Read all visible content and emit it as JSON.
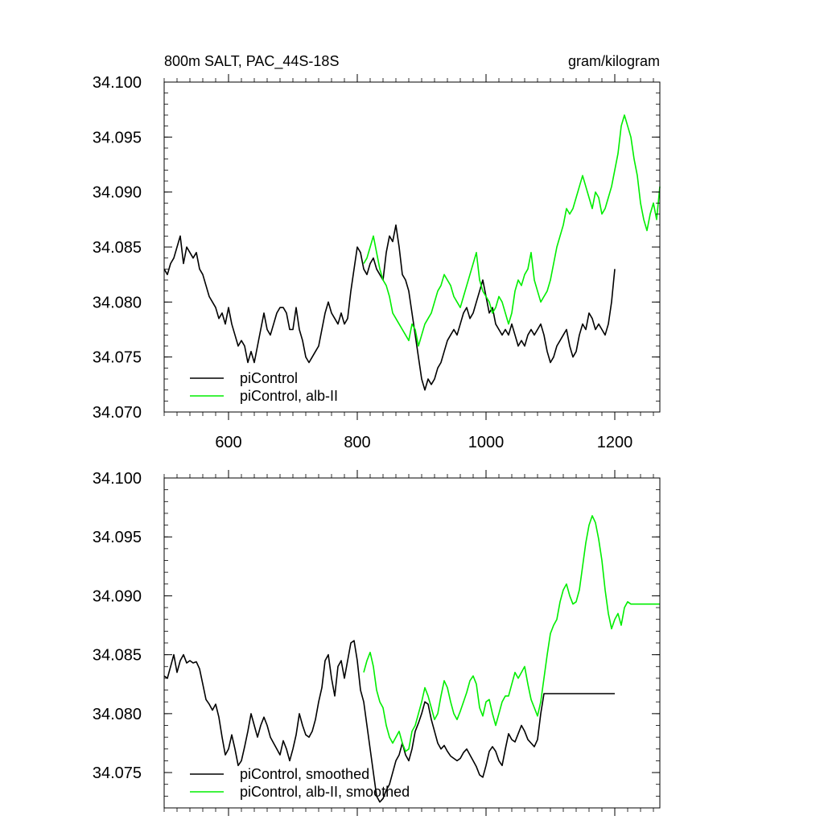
{
  "figure": {
    "title_left": "800m SALT, PAC_44S-18S",
    "title_right": "gram/kilogram"
  },
  "colors": {
    "piControl": "#000000",
    "alb_II": "#00ee00",
    "axis": "#000000"
  },
  "chart_data": [
    {
      "type": "line",
      "title": "800m SALT, PAC_44S-18S",
      "units": "gram/kilogram",
      "xlim": [
        500,
        1270
      ],
      "ylim": [
        34.07,
        34.1
      ],
      "xticks": [
        600,
        800,
        1000,
        1200
      ],
      "xtick_labels": [
        "600",
        "800",
        "1000",
        "1200"
      ],
      "yticks": [
        34.07,
        34.075,
        34.08,
        34.085,
        34.09,
        34.095,
        34.1
      ],
      "ytick_labels": [
        "34.070",
        "34.075",
        "34.080",
        "34.085",
        "34.090",
        "34.095",
        "34.100"
      ],
      "grid": false,
      "legend_position": "bottom-left",
      "series": [
        {
          "name": "piControl",
          "color": "#000000",
          "x": [
            500,
            505,
            510,
            515,
            520,
            525,
            530,
            535,
            540,
            545,
            550,
            555,
            560,
            565,
            570,
            575,
            580,
            585,
            590,
            595,
            600,
            605,
            610,
            615,
            620,
            625,
            630,
            635,
            640,
            645,
            650,
            655,
            660,
            665,
            670,
            675,
            680,
            685,
            690,
            695,
            700,
            705,
            710,
            715,
            720,
            725,
            730,
            735,
            740,
            745,
            750,
            755,
            760,
            765,
            770,
            775,
            780,
            785,
            790,
            795,
            800,
            805,
            810,
            815,
            820,
            825,
            830,
            835,
            840,
            845,
            850,
            855,
            860,
            865,
            870,
            875,
            880,
            885,
            890,
            895,
            900,
            905,
            910,
            915,
            920,
            925,
            930,
            935,
            940,
            945,
            950,
            955,
            960,
            965,
            970,
            975,
            980,
            985,
            990,
            995,
            1000,
            1005,
            1010,
            1015,
            1020,
            1025,
            1030,
            1035,
            1040,
            1045,
            1050,
            1055,
            1060,
            1065,
            1070,
            1075,
            1080,
            1085,
            1090,
            1095,
            1100,
            1105,
            1110,
            1115,
            1120,
            1125,
            1130,
            1135,
            1140,
            1145,
            1150,
            1155,
            1160,
            1165,
            1170,
            1175,
            1180,
            1185,
            1190,
            1195,
            1200
          ],
          "values": [
            34.083,
            34.0825,
            34.0835,
            34.084,
            34.085,
            34.086,
            34.0835,
            34.085,
            34.0845,
            34.084,
            34.0845,
            34.083,
            34.0825,
            34.0815,
            34.0805,
            34.08,
            34.0795,
            34.0785,
            34.079,
            34.078,
            34.0795,
            34.078,
            34.077,
            34.076,
            34.0765,
            34.076,
            34.0745,
            34.0755,
            34.0745,
            34.076,
            34.0775,
            34.079,
            34.0775,
            34.077,
            34.078,
            34.079,
            34.0795,
            34.0795,
            34.079,
            34.0775,
            34.0775,
            34.0795,
            34.0775,
            34.0765,
            34.075,
            34.0745,
            34.075,
            34.0755,
            34.076,
            34.0775,
            34.079,
            34.08,
            34.079,
            34.0785,
            34.078,
            34.079,
            34.078,
            34.0785,
            34.081,
            34.083,
            34.085,
            34.0845,
            34.083,
            34.0825,
            34.0835,
            34.084,
            34.083,
            34.0825,
            34.082,
            34.0845,
            34.086,
            34.0855,
            34.087,
            34.085,
            34.0825,
            34.082,
            34.081,
            34.079,
            34.077,
            34.075,
            34.073,
            34.072,
            34.073,
            34.0725,
            34.073,
            34.074,
            34.0745,
            34.0755,
            34.0765,
            34.077,
            34.0775,
            34.077,
            34.078,
            34.079,
            34.0795,
            34.0785,
            34.079,
            34.08,
            34.081,
            34.082,
            34.0805,
            34.079,
            34.0795,
            34.078,
            34.0775,
            34.077,
            34.0775,
            34.077,
            34.078,
            34.077,
            34.076,
            34.0765,
            34.076,
            34.077,
            34.0775,
            34.077,
            34.0775,
            34.078,
            34.077,
            34.0755,
            34.0745,
            34.075,
            34.076,
            34.0765,
            34.077,
            34.0775,
            34.076,
            34.075,
            34.0755,
            34.077,
            34.078,
            34.0775,
            34.079,
            34.0785,
            34.0775,
            34.078,
            34.0775,
            34.077,
            34.078,
            34.08,
            34.083
          ]
        },
        {
          "name": "piControl, alb-II",
          "color": "#00ee00",
          "x": [
            810,
            815,
            820,
            825,
            830,
            835,
            840,
            845,
            850,
            855,
            860,
            865,
            870,
            875,
            880,
            885,
            890,
            895,
            900,
            905,
            910,
            915,
            920,
            925,
            930,
            935,
            940,
            945,
            950,
            955,
            960,
            965,
            970,
            975,
            980,
            985,
            990,
            995,
            1000,
            1005,
            1010,
            1015,
            1020,
            1025,
            1030,
            1035,
            1040,
            1045,
            1050,
            1055,
            1060,
            1065,
            1070,
            1075,
            1080,
            1085,
            1090,
            1095,
            1100,
            1105,
            1110,
            1115,
            1120,
            1125,
            1130,
            1135,
            1140,
            1145,
            1150,
            1155,
            1160,
            1165,
            1170,
            1175,
            1180,
            1185,
            1190,
            1195,
            1200,
            1205,
            1210,
            1215,
            1220,
            1225,
            1230,
            1235,
            1240,
            1245,
            1250,
            1255,
            1260,
            1265,
            1270
          ],
          "values": [
            34.0835,
            34.084,
            34.085,
            34.086,
            34.0845,
            34.083,
            34.082,
            34.0815,
            34.0805,
            34.079,
            34.0785,
            34.078,
            34.0775,
            34.077,
            34.0765,
            34.078,
            34.0775,
            34.076,
            34.077,
            34.078,
            34.0785,
            34.079,
            34.08,
            34.081,
            34.0815,
            34.0825,
            34.082,
            34.0815,
            34.0805,
            34.08,
            34.0795,
            34.0805,
            34.0815,
            34.0825,
            34.0835,
            34.0845,
            34.082,
            34.081,
            34.0805,
            34.08,
            34.079,
            34.0795,
            34.0805,
            34.08,
            34.079,
            34.078,
            34.079,
            34.081,
            34.082,
            34.0815,
            34.0825,
            34.083,
            34.0845,
            34.082,
            34.081,
            34.08,
            34.0805,
            34.081,
            34.082,
            34.0835,
            34.085,
            34.086,
            34.087,
            34.0885,
            34.088,
            34.0885,
            34.0895,
            34.0905,
            34.0915,
            34.0905,
            34.0895,
            34.0885,
            34.09,
            34.0895,
            34.088,
            34.0885,
            34.0895,
            34.0905,
            34.092,
            34.0935,
            34.096,
            34.097,
            34.096,
            34.095,
            34.093,
            34.0915,
            34.089,
            34.0875,
            34.0865,
            34.088,
            34.089,
            34.0875,
            34.0905
          ]
        }
      ]
    },
    {
      "type": "line",
      "xlim": [
        500,
        1270
      ],
      "ylim": [
        34.072,
        34.1
      ],
      "xticks": [
        600,
        800,
        1000,
        1200
      ],
      "yticks": [
        34.075,
        34.08,
        34.085,
        34.09,
        34.095,
        34.1
      ],
      "ytick_labels": [
        "34.075",
        "34.080",
        "34.085",
        "34.090",
        "34.095",
        "34.100"
      ],
      "grid": false,
      "legend_position": "bottom-left",
      "series": [
        {
          "name": "piControl, smoothed",
          "color": "#000000",
          "x": [
            500,
            505,
            510,
            515,
            520,
            525,
            530,
            535,
            540,
            545,
            550,
            555,
            560,
            565,
            570,
            575,
            580,
            585,
            590,
            595,
            600,
            605,
            610,
            615,
            620,
            625,
            630,
            635,
            640,
            645,
            650,
            655,
            660,
            665,
            670,
            675,
            680,
            685,
            690,
            695,
            700,
            705,
            710,
            715,
            720,
            725,
            730,
            735,
            740,
            745,
            750,
            755,
            760,
            765,
            770,
            775,
            780,
            785,
            790,
            795,
            800,
            805,
            810,
            815,
            820,
            825,
            830,
            835,
            840,
            845,
            850,
            855,
            860,
            865,
            870,
            875,
            880,
            885,
            890,
            895,
            900,
            905,
            910,
            915,
            920,
            925,
            930,
            935,
            940,
            945,
            950,
            955,
            960,
            965,
            970,
            975,
            980,
            985,
            990,
            995,
            1000,
            1005,
            1010,
            1015,
            1020,
            1025,
            1030,
            1035,
            1040,
            1045,
            1050,
            1055,
            1060,
            1065,
            1070,
            1075,
            1080,
            1085,
            1090,
            1095,
            1100,
            1105,
            1110,
            1115,
            1120,
            1125,
            1130,
            1135,
            1140,
            1145,
            1150,
            1155,
            1160,
            1165,
            1170,
            1175,
            1180,
            1185,
            1190,
            1195,
            1200
          ],
          "values": [
            34.0832,
            34.083,
            34.084,
            34.085,
            34.0835,
            34.0845,
            34.085,
            34.0843,
            34.0845,
            34.0843,
            34.0844,
            34.0838,
            34.0825,
            34.0812,
            34.0808,
            34.0803,
            34.0808,
            34.0797,
            34.078,
            34.0765,
            34.077,
            34.0782,
            34.077,
            34.0756,
            34.076,
            34.0772,
            34.0785,
            34.08,
            34.079,
            34.078,
            34.079,
            34.0797,
            34.079,
            34.078,
            34.0775,
            34.077,
            34.0765,
            34.0777,
            34.077,
            34.076,
            34.077,
            34.0782,
            34.08,
            34.079,
            34.0782,
            34.078,
            34.0785,
            34.0795,
            34.081,
            34.0822,
            34.0845,
            34.085,
            34.083,
            34.0815,
            34.084,
            34.0845,
            34.083,
            34.0845,
            34.086,
            34.0862,
            34.0845,
            34.082,
            34.081,
            34.079,
            34.077,
            34.075,
            34.073,
            34.0725,
            34.0728,
            34.0735,
            34.074,
            34.075,
            34.076,
            34.0765,
            34.0775,
            34.0765,
            34.076,
            34.077,
            34.0785,
            34.0792,
            34.08,
            34.081,
            34.0808,
            34.0795,
            34.0785,
            34.0775,
            34.077,
            34.0773,
            34.0768,
            34.0764,
            34.0762,
            34.076,
            34.0762,
            34.0767,
            34.077,
            34.0765,
            34.076,
            34.0755,
            34.0748,
            34.0746,
            34.0756,
            34.0768,
            34.0772,
            34.0768,
            34.076,
            34.0756,
            34.077,
            34.0783,
            34.0778,
            34.0776,
            34.0783,
            34.079,
            34.0785,
            34.0778,
            34.0775,
            34.0772,
            34.0778,
            34.08,
            34.0817,
            34.0817,
            34.0817,
            34.0817,
            34.0817,
            34.0817,
            34.0817,
            34.0817,
            34.0817,
            34.0817,
            34.0817,
            34.0817,
            34.0817,
            34.0817,
            34.0817,
            34.0817,
            34.0817,
            34.0817,
            34.0817,
            34.0817,
            34.0817,
            34.0817,
            34.0817
          ]
        },
        {
          "name": "piControl, alb-II, smoothed",
          "color": "#00ee00",
          "x": [
            810,
            815,
            820,
            825,
            830,
            835,
            840,
            845,
            850,
            855,
            860,
            865,
            870,
            875,
            880,
            885,
            890,
            895,
            900,
            905,
            910,
            915,
            920,
            925,
            930,
            935,
            940,
            945,
            950,
            955,
            960,
            965,
            970,
            975,
            980,
            985,
            990,
            995,
            1000,
            1005,
            1010,
            1015,
            1020,
            1025,
            1030,
            1035,
            1040,
            1045,
            1050,
            1055,
            1060,
            1065,
            1070,
            1075,
            1080,
            1085,
            1090,
            1095,
            1100,
            1105,
            1110,
            1115,
            1120,
            1125,
            1130,
            1135,
            1140,
            1145,
            1150,
            1155,
            1160,
            1165,
            1170,
            1175,
            1180,
            1185,
            1190,
            1195,
            1200,
            1205,
            1210,
            1215,
            1220,
            1225,
            1230,
            1235,
            1240,
            1245,
            1250,
            1255,
            1260,
            1265,
            1270
          ],
          "values": [
            34.0835,
            34.0845,
            34.0852,
            34.084,
            34.082,
            34.081,
            34.0805,
            34.079,
            34.078,
            34.0775,
            34.078,
            34.0785,
            34.0775,
            34.0768,
            34.077,
            34.0785,
            34.079,
            34.08,
            34.081,
            34.0822,
            34.0815,
            34.0805,
            34.0795,
            34.08,
            34.0815,
            34.0828,
            34.0822,
            34.081,
            34.08,
            34.0795,
            34.0802,
            34.081,
            34.0818,
            34.0828,
            34.0832,
            34.0825,
            34.0805,
            34.0798,
            34.081,
            34.0812,
            34.08,
            34.079,
            34.08,
            34.081,
            34.0815,
            34.0815,
            34.0825,
            34.0835,
            34.083,
            34.0835,
            34.084,
            34.0825,
            34.0812,
            34.0805,
            34.0798,
            34.081,
            34.083,
            34.085,
            34.0868,
            34.0875,
            34.088,
            34.0895,
            34.0905,
            34.091,
            34.09,
            34.0893,
            34.0895,
            34.0905,
            34.0925,
            34.0945,
            34.096,
            34.0968,
            34.0962,
            34.0948,
            34.093,
            34.0905,
            34.0885,
            34.0872,
            34.088,
            34.0885,
            34.0875,
            34.089,
            34.0895,
            34.0893,
            34.0893,
            34.0893,
            34.0893,
            34.0893,
            34.0893,
            34.0893,
            34.0893,
            34.0893,
            34.0893
          ]
        }
      ]
    }
  ]
}
